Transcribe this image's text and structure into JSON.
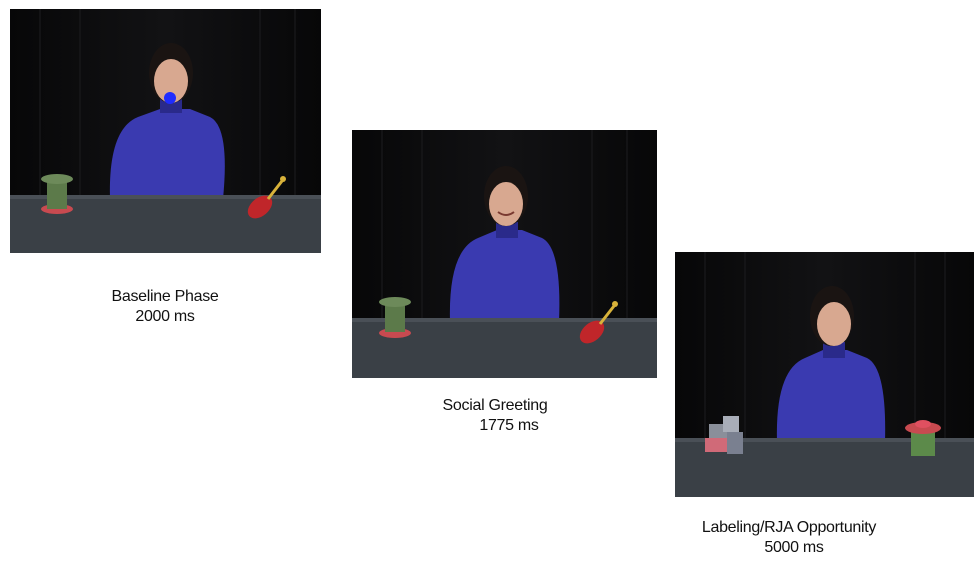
{
  "phases": [
    {
      "title": "Baseline Phase",
      "duration": "2000 ms"
    },
    {
      "title": "Social Greeting",
      "duration": "1775 ms"
    },
    {
      "title": "Labeling/RJA Opportunity",
      "duration": "5000 ms"
    }
  ],
  "colors": {
    "shirt": "#3a3ab0",
    "background": "#0b0b0c",
    "table": "#3a4046",
    "gaze_marker": "#1f2cff",
    "toy_green": "#5c7a4a",
    "toy_red": "#c0262a"
  }
}
